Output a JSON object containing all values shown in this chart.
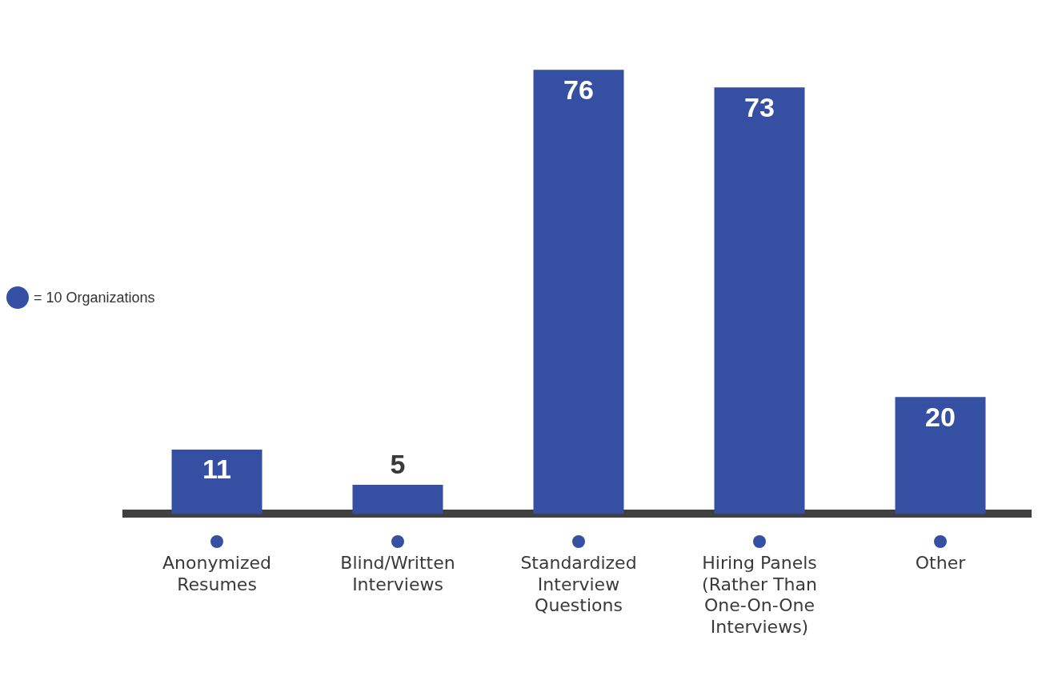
{
  "chart_data": {
    "type": "bar",
    "categories": [
      "Anonymized Resumes",
      "Blind/Written Interviews",
      "Standardized Interview Questions",
      "Hiring Panels (Rather Than One-On-One Interviews)",
      "Other"
    ],
    "values": [
      11,
      5,
      76,
      73,
      20
    ],
    "color": "#3550a3",
    "data_labels": true,
    "grid": false,
    "legend": false,
    "annotations": [
      "= 10 Organizations"
    ]
  }
}
